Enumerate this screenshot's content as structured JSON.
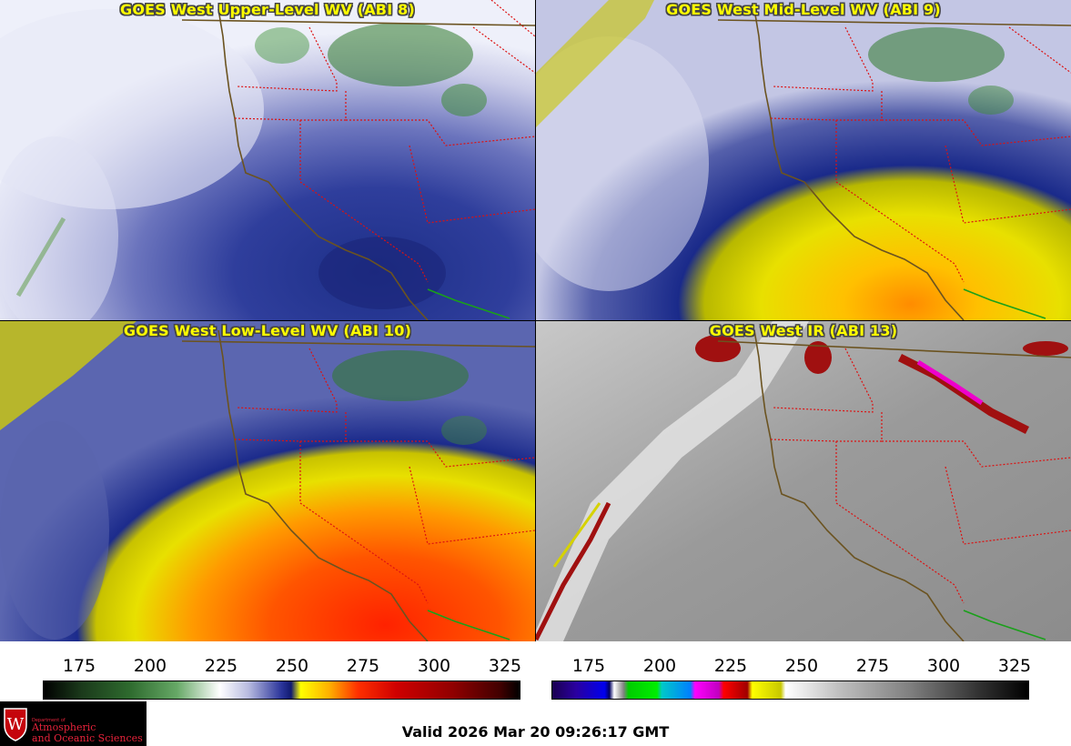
{
  "panels": [
    {
      "title": "GOES West Upper-Level WV (ABI 8)"
    },
    {
      "title": "GOES West Mid-Level WV (ABI 9)"
    },
    {
      "title": "GOES West Low-Level WV (ABI 10)"
    },
    {
      "title": "GOES West IR (ABI 13)"
    }
  ],
  "colorbars": [
    {
      "ticks": [
        "175",
        "200",
        "225",
        "250",
        "275",
        "300",
        "325"
      ]
    },
    {
      "ticks": [
        "175",
        "200",
        "225",
        "250",
        "275",
        "300",
        "325"
      ]
    }
  ],
  "logo": {
    "small": "Department of",
    "line1": "Atmospheric",
    "line2": "and Oceanic Sciences"
  },
  "valid_time": "Valid 2026 Mar 20 09:26:17 GMT",
  "colors": {
    "state_border": "#dd1111",
    "coastline": "#6b5320",
    "mexico_border": "#1aa01a",
    "title": "#ffff00"
  }
}
